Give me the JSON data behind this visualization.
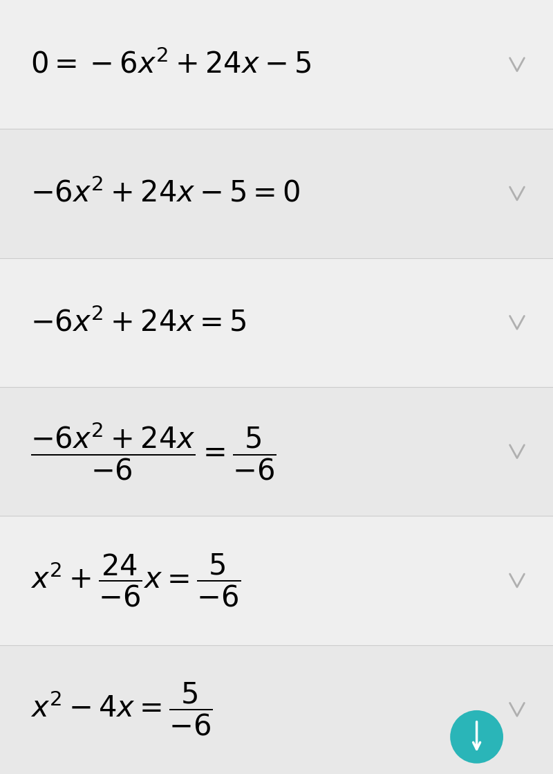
{
  "background_color": "#f2f2f2",
  "row_bg_colors": [
    "#efefef",
    "#e8e8e8",
    "#efefef",
    "#e8e8e8",
    "#efefef",
    "#e8e8e8"
  ],
  "separator_color": "#cccccc",
  "chevron_color": "#b0b0b0",
  "teal_button_color": "#2ab5b8",
  "fig_width": 8.0,
  "fig_height": 11.18,
  "math_fontsize": 30
}
